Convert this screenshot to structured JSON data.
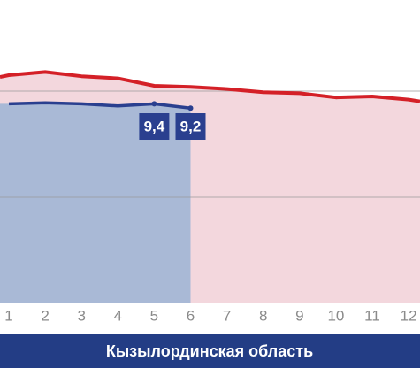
{
  "chart_data": {
    "type": "line",
    "categories": [
      "1",
      "2",
      "3",
      "4",
      "5",
      "6",
      "7",
      "8",
      "9",
      "10",
      "11",
      "12"
    ],
    "series": [
      {
        "color": "#d42027",
        "area_color": "#f3d7dd",
        "values": [
          10.75,
          10.9,
          10.7,
          10.6,
          10.25,
          10.2,
          10.1,
          9.95,
          9.9,
          9.7,
          9.75,
          9.6
        ]
      },
      {
        "color": "#2a3f8f",
        "area_color": "#a9b9d6",
        "values": [
          9.4,
          9.45,
          9.4,
          9.3,
          9.4,
          9.2,
          null,
          null,
          null,
          null,
          null,
          null
        ],
        "value_labels": [
          null,
          null,
          null,
          null,
          "9,4",
          "9,2",
          null,
          null,
          null,
          null,
          null,
          null
        ]
      }
    ],
    "ylim": [
      0,
      14
    ],
    "yticks": [
      5,
      10
    ],
    "grid": true,
    "footer": "Кызылординская область",
    "footer_color": "#233d85"
  }
}
